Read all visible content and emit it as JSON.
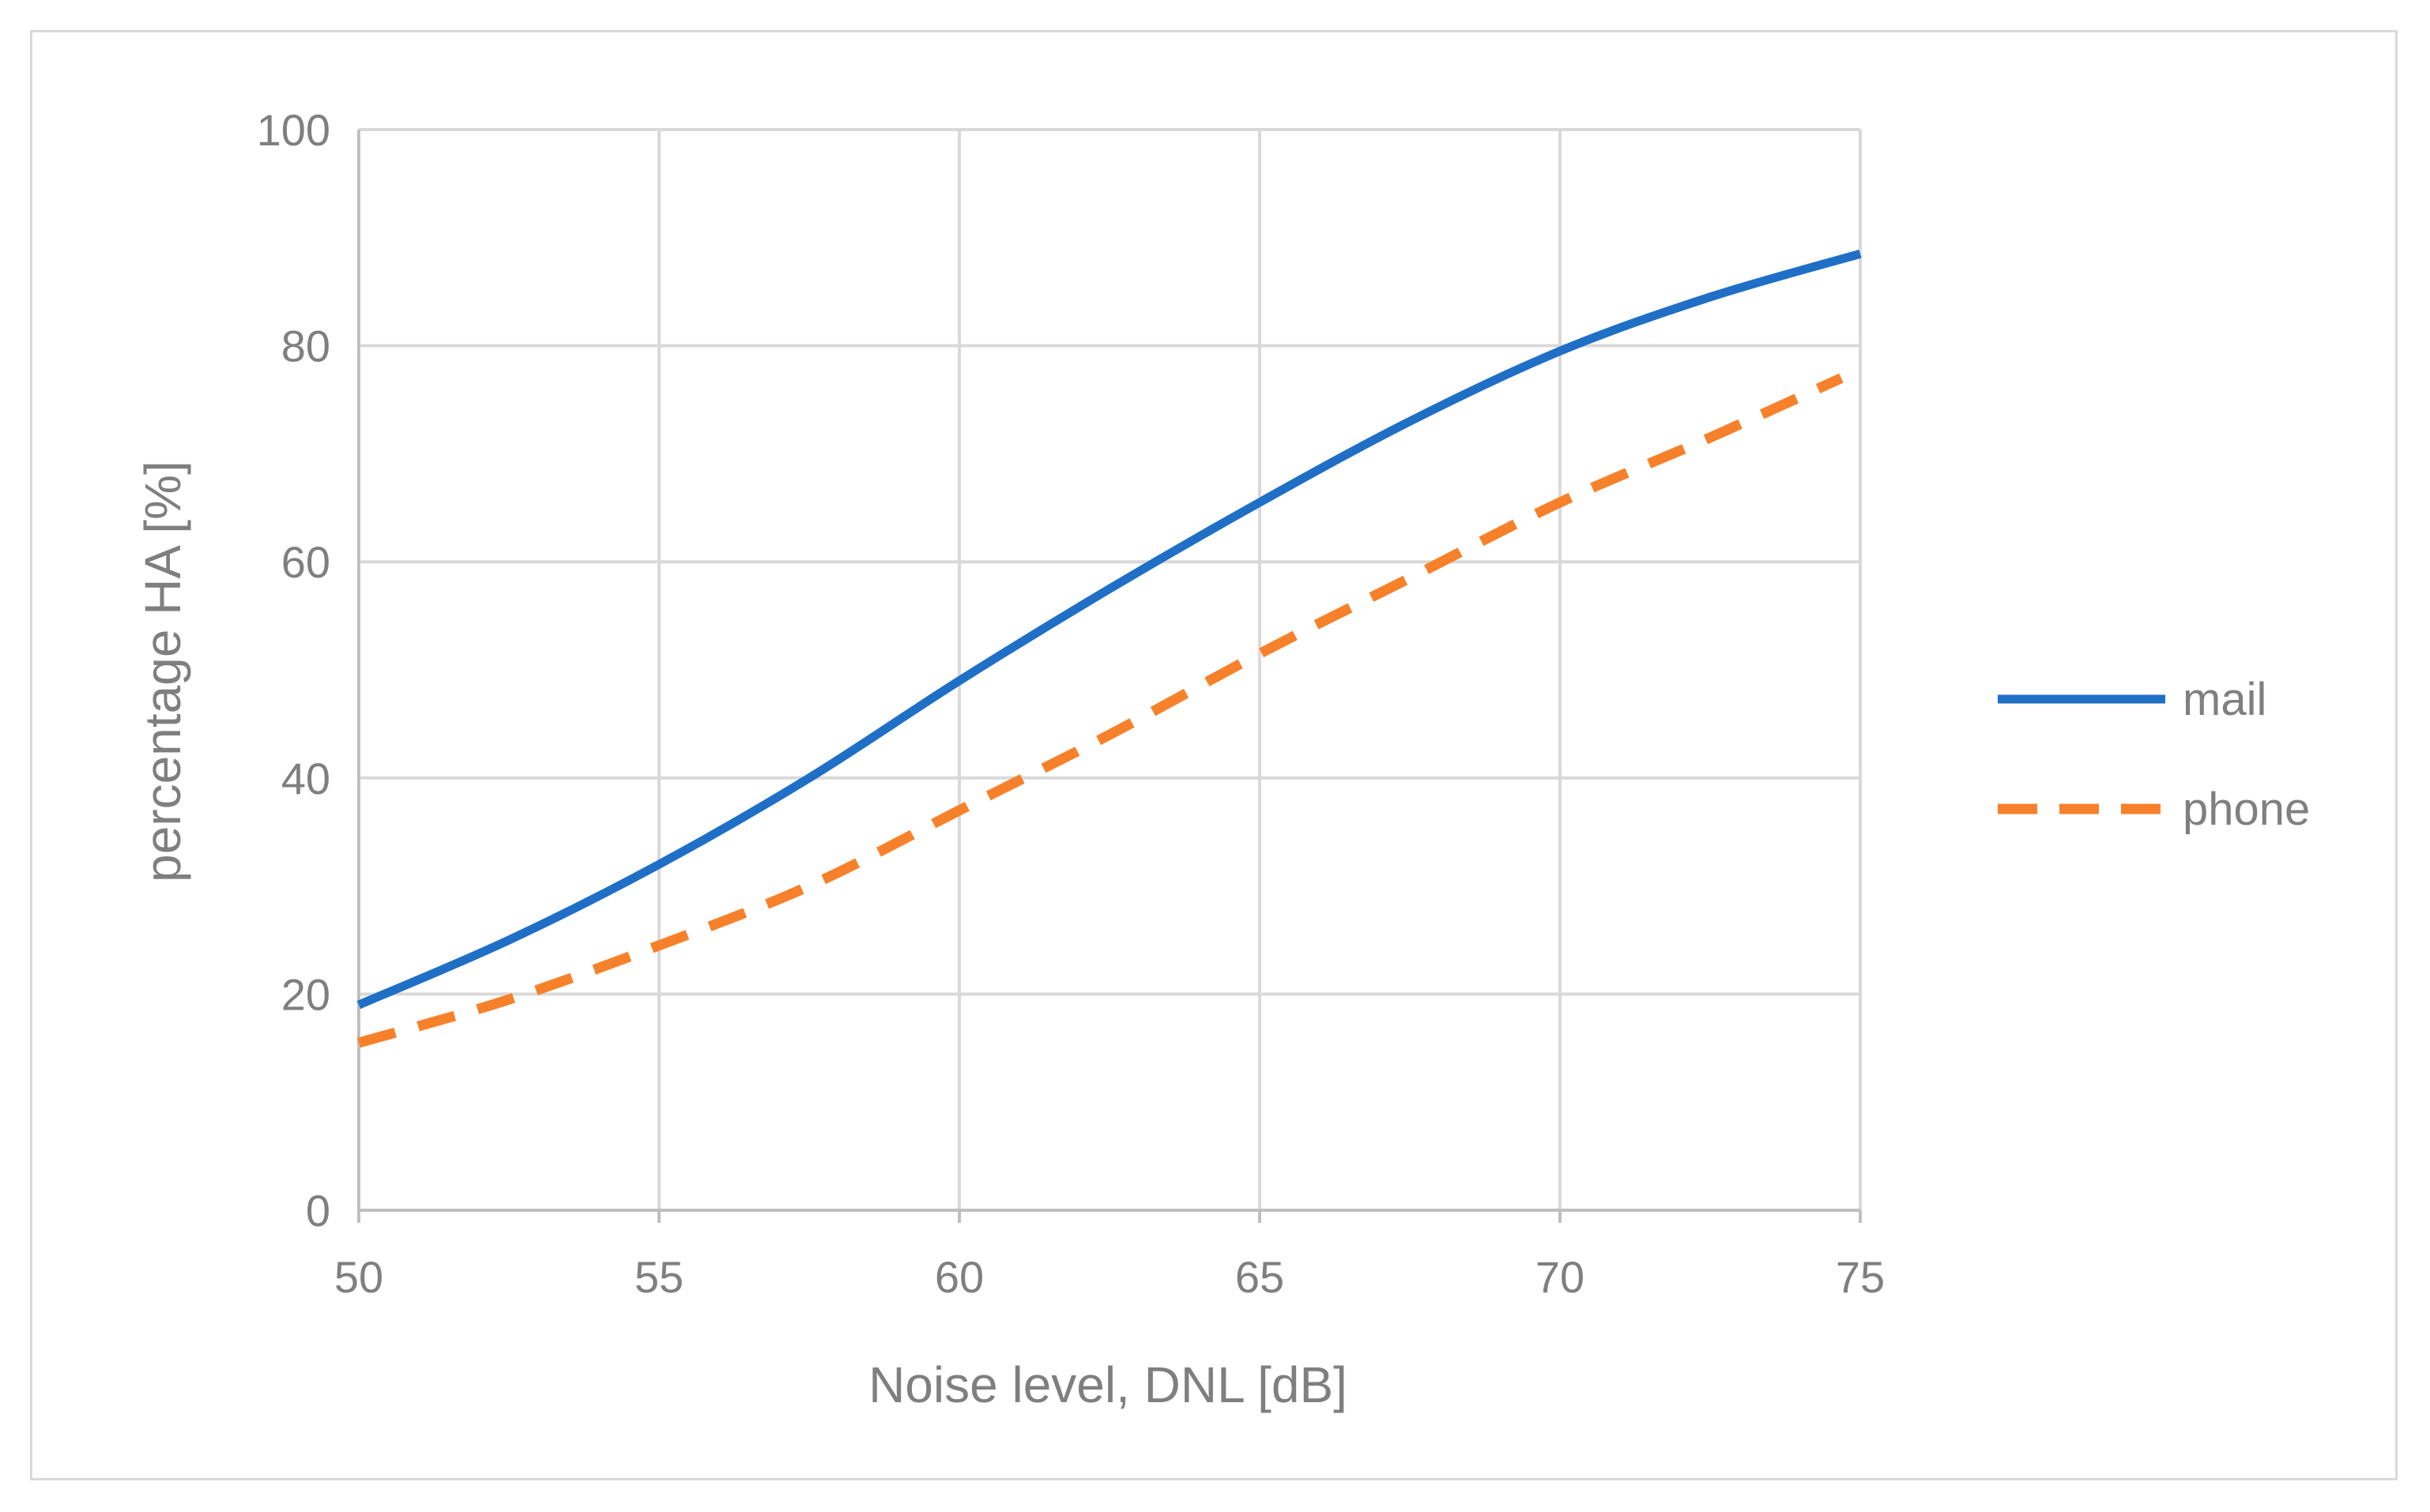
{
  "chart_data": {
    "type": "line",
    "title": "",
    "xlabel": "Noise level, DNL [dB]",
    "ylabel": "percentage HA [%]",
    "xlim": [
      50,
      75
    ],
    "ylim": [
      0,
      100
    ],
    "xticks": [
      50,
      55,
      60,
      65,
      70,
      75
    ],
    "yticks": [
      0,
      20,
      40,
      60,
      80,
      100
    ],
    "grid": true,
    "legend_position": "right",
    "x": [
      50,
      52.5,
      55,
      57.5,
      60,
      62.5,
      65,
      67.5,
      70,
      72.5,
      75
    ],
    "series": [
      {
        "name": "mail",
        "color": "#1f6fc6",
        "style": "solid",
        "values": [
          19,
          25,
          32,
          40,
          49,
          57.5,
          65.5,
          73,
          79.5,
          84.5,
          88.5
        ]
      },
      {
        "name": "phone",
        "color": "#f7812b",
        "style": "dashed",
        "values": [
          15.5,
          19.5,
          24.5,
          30,
          37,
          44,
          51.5,
          58.5,
          65.5,
          71.5,
          77
        ]
      }
    ]
  }
}
